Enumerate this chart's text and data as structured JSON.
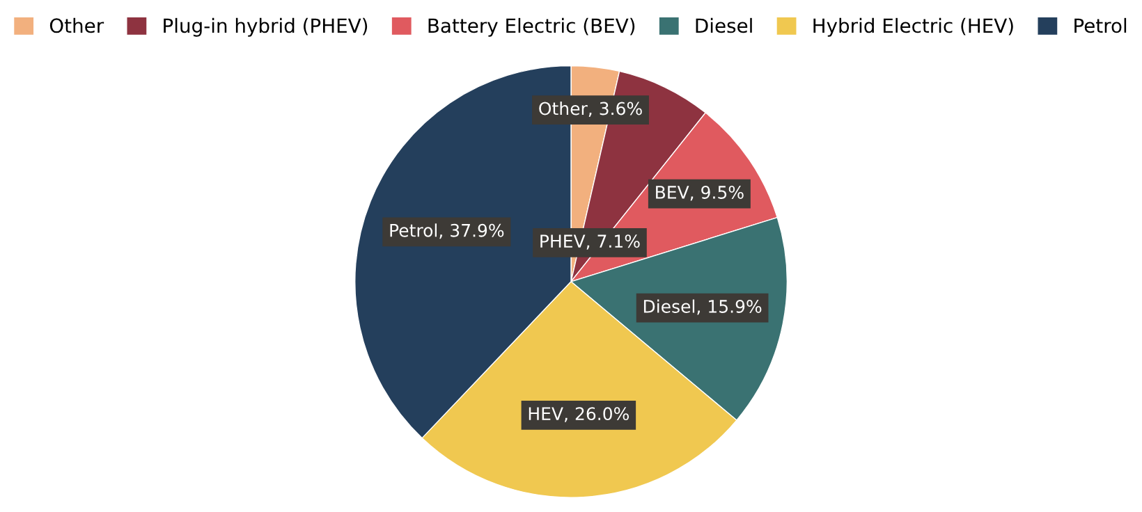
{
  "chart_data": {
    "type": "pie",
    "categories": [
      "Other",
      "Plug-in hybrid (PHEV)",
      "Battery Electric (BEV)",
      "Diesel",
      "Hybrid Electric (HEV)",
      "Petrol"
    ],
    "values": [
      3.6,
      7.1,
      9.5,
      15.9,
      26.0,
      37.9
    ],
    "colors": [
      "#f2b07e",
      "#8e3340",
      "#e05a5f",
      "#3a7272",
      "#f0c850",
      "#243f5c"
    ],
    "value_labels": [
      "Other, 3.6%",
      "PHEV, 7.1%",
      "BEV, 9.5%",
      "Diesel, 15.9%",
      "HEV, 26.0%",
      "Petrol, 37.9%"
    ],
    "legend": "top"
  }
}
